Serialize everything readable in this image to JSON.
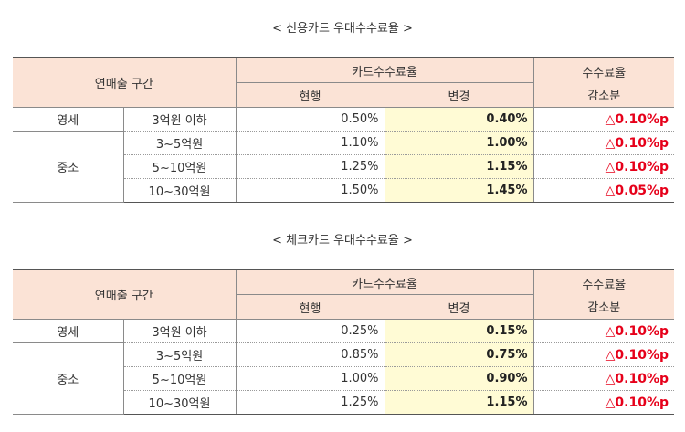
{
  "tables": [
    {
      "caption": "< 신용카드 우대수수료율 >",
      "headers": {
        "section": "연매출 구간",
        "card_fee": "카드수수료율",
        "current": "현행",
        "changed": "변경",
        "reduction_line1": "수수료율",
        "reduction_line2": "감소분"
      },
      "groups": [
        {
          "name": "영세",
          "rows": [
            {
              "range": "3억원 이하",
              "current": "0.50%",
              "changed": "0.40%",
              "reduction": "△0.10%p"
            }
          ]
        },
        {
          "name": "중소",
          "rows": [
            {
              "range": "3~5억원",
              "current": "1.10%",
              "changed": "1.00%",
              "reduction": "△0.10%p"
            },
            {
              "range": "5~10억원",
              "current": "1.25%",
              "changed": "1.15%",
              "reduction": "△0.10%p"
            },
            {
              "range": "10~30억원",
              "current": "1.50%",
              "changed": "1.45%",
              "reduction": "△0.05%p"
            }
          ]
        }
      ]
    },
    {
      "caption": "< 체크카드 우대수수료율 >",
      "headers": {
        "section": "연매출 구간",
        "card_fee": "카드수수료율",
        "current": "현행",
        "changed": "변경",
        "reduction_line1": "수수료율",
        "reduction_line2": "감소분"
      },
      "groups": [
        {
          "name": "영세",
          "rows": [
            {
              "range": "3억원 이하",
              "current": "0.25%",
              "changed": "0.15%",
              "reduction": "△0.10%p"
            }
          ]
        },
        {
          "name": "중소",
          "rows": [
            {
              "range": "3~5억원",
              "current": "0.85%",
              "changed": "0.75%",
              "reduction": "△0.10%p"
            },
            {
              "range": "5~10억원",
              "current": "1.00%",
              "changed": "0.90%",
              "reduction": "△0.10%p"
            },
            {
              "range": "10~30억원",
              "current": "1.25%",
              "changed": "1.15%",
              "reduction": "△0.10%p"
            }
          ]
        }
      ]
    }
  ]
}
